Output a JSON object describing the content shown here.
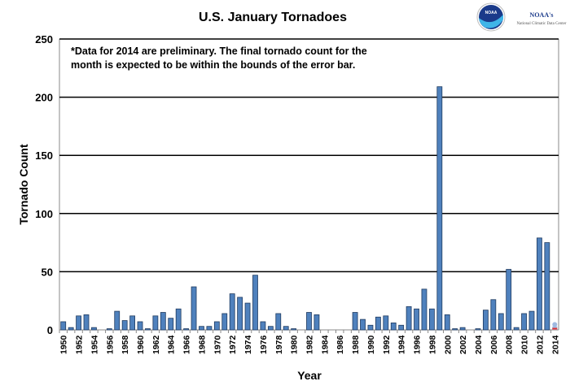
{
  "logo": {
    "agency": "NOAA's",
    "center": "National Climatic Data Center",
    "emblem_text": "NOAA"
  },
  "chart_data": {
    "type": "bar",
    "title": "U.S. January Tornadoes",
    "xlabel": "Year",
    "ylabel": "Tornado Count",
    "ylim": [
      0,
      250
    ],
    "yticks": [
      0,
      50,
      100,
      150,
      200,
      250
    ],
    "grid": true,
    "annotation": "*Data for 2014 are preliminary. The final tornado count for the month is expected to be within the bounds of the error bar.",
    "annotation_lines": [
      "*Data for 2014 are preliminary. The final tornado count for the",
      "month is expected to be within the bounds of the error bar."
    ],
    "bar_color": "#4f81bd",
    "preliminary_color": "#9fb9e0",
    "error_color": "#e03030",
    "categories": [
      1950,
      1951,
      1952,
      1953,
      1954,
      1955,
      1956,
      1957,
      1958,
      1959,
      1960,
      1961,
      1962,
      1963,
      1964,
      1965,
      1966,
      1967,
      1968,
      1969,
      1970,
      1971,
      1972,
      1973,
      1974,
      1975,
      1976,
      1977,
      1978,
      1979,
      1980,
      1981,
      1982,
      1983,
      1984,
      1985,
      1986,
      1987,
      1988,
      1989,
      1990,
      1991,
      1992,
      1993,
      1994,
      1995,
      1996,
      1997,
      1998,
      1999,
      2000,
      2001,
      2002,
      2003,
      2004,
      2005,
      2006,
      2007,
      2008,
      2009,
      2010,
      2011,
      2012,
      2013,
      2014
    ],
    "values": [
      7,
      2,
      12,
      13,
      2,
      0,
      1,
      16,
      8,
      12,
      7,
      1,
      12,
      15,
      10,
      18,
      1,
      37,
      3,
      3,
      7,
      14,
      31,
      28,
      23,
      47,
      7,
      3,
      14,
      3,
      1,
      0,
      15,
      13,
      0,
      0,
      0,
      0,
      15,
      9,
      4,
      11,
      12,
      6,
      4,
      20,
      18,
      35,
      18,
      209,
      13,
      1,
      2,
      0,
      1,
      17,
      26,
      14,
      52,
      2,
      14,
      16,
      79,
      75,
      3
    ],
    "preliminary": {
      "year": 2014,
      "value": 3,
      "error_low": 1,
      "error_high": 6
    }
  }
}
